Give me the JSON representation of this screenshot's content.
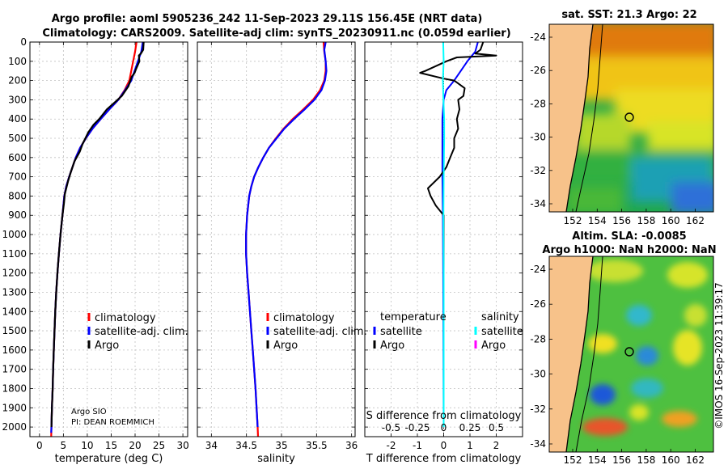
{
  "header": {
    "title_line1": "Argo profile: aoml 5905236_242 11-Sep-2023 29.11S  156.45E (NRT data)",
    "title_line2": "Climatology: CARS2009. Satellite-adj clim: synTS_20230911.nc (0.059d earlier)"
  },
  "chart_data": [
    {
      "id": "temperature",
      "type": "line",
      "xlabel": "temperature (deg C)",
      "xlim": [
        -2,
        31
      ],
      "xticks": [
        0,
        5,
        10,
        15,
        20,
        25,
        30
      ],
      "ylim": [
        2050,
        0
      ],
      "yticks": [
        0,
        100,
        200,
        300,
        400,
        500,
        600,
        700,
        800,
        900,
        1000,
        1100,
        1200,
        1300,
        1400,
        1500,
        1600,
        1700,
        1800,
        1900,
        2000
      ],
      "legend": [
        "climatology",
        "satellite-adj. clim.",
        "Argo"
      ],
      "legend_position": "center-right",
      "annotations": [
        "Argo SIO",
        "PI: DEAN ROEMMICH"
      ],
      "series": [
        {
          "name": "climatology",
          "color": "#ff0000",
          "points": [
            [
              20.3,
              0
            ],
            [
              20.0,
              50
            ],
            [
              19.6,
              100
            ],
            [
              18.8,
              200
            ],
            [
              17.8,
              250
            ],
            [
              16.5,
              300
            ],
            [
              14.6,
              350
            ],
            [
              12.8,
              400
            ],
            [
              11.1,
              450
            ],
            [
              9.7,
              500
            ],
            [
              8.5,
              550
            ],
            [
              7.6,
              600
            ],
            [
              6.9,
              650
            ],
            [
              6.2,
              700
            ],
            [
              5.6,
              750
            ],
            [
              5.2,
              800
            ],
            [
              4.8,
              900
            ],
            [
              4.4,
              1000
            ],
            [
              4.05,
              1100
            ],
            [
              3.75,
              1200
            ],
            [
              3.5,
              1300
            ],
            [
              3.3,
              1400
            ],
            [
              3.15,
              1500
            ],
            [
              3.0,
              1600
            ],
            [
              2.85,
              1700
            ],
            [
              2.75,
              1800
            ],
            [
              2.6,
              1900
            ],
            [
              2.5,
              2000
            ],
            [
              2.45,
              2050
            ]
          ]
        },
        {
          "name": "satellite-adj. clim.",
          "color": "#0000ff",
          "points": [
            [
              21.6,
              0
            ],
            [
              21.3,
              50
            ],
            [
              20.6,
              100
            ],
            [
              19.2,
              200
            ],
            [
              17.9,
              250
            ],
            [
              16.5,
              300
            ],
            [
              14.6,
              350
            ],
            [
              12.8,
              400
            ],
            [
              11.1,
              450
            ],
            [
              9.7,
              500
            ],
            [
              8.5,
              550
            ],
            [
              7.6,
              600
            ],
            [
              6.9,
              650
            ],
            [
              6.2,
              700
            ],
            [
              5.6,
              750
            ],
            [
              5.2,
              800
            ],
            [
              4.8,
              900
            ],
            [
              4.4,
              1000
            ],
            [
              4.05,
              1100
            ],
            [
              3.75,
              1200
            ],
            [
              3.5,
              1300
            ],
            [
              3.3,
              1400
            ],
            [
              3.15,
              1500
            ],
            [
              3.0,
              1600
            ],
            [
              2.85,
              1700
            ],
            [
              2.75,
              1800
            ],
            [
              2.6,
              1900
            ],
            [
              2.5,
              2000
            ],
            [
              2.45,
              2030
            ]
          ]
        },
        {
          "name": "Argo",
          "color": "#000000",
          "points": [
            [
              21.8,
              0
            ],
            [
              21.7,
              40
            ],
            [
              21.2,
              60
            ],
            [
              20.8,
              70
            ],
            [
              20.9,
              100
            ],
            [
              20.2,
              140
            ],
            [
              19.9,
              160
            ],
            [
              19.3,
              180
            ],
            [
              18.6,
              230
            ],
            [
              17.2,
              280
            ],
            [
              15.9,
              310
            ],
            [
              14.1,
              350
            ],
            [
              12.5,
              400
            ],
            [
              11.3,
              430
            ],
            [
              10.2,
              470
            ],
            [
              9.0,
              530
            ],
            [
              8.4,
              570
            ],
            [
              7.3,
              620
            ],
            [
              6.5,
              680
            ],
            [
              6.0,
              720
            ],
            [
              5.6,
              760
            ],
            [
              5.3,
              790
            ],
            [
              5.1,
              840
            ],
            [
              4.8,
              900
            ],
            [
              4.4,
              1000
            ],
            [
              4.05,
              1100
            ],
            [
              3.75,
              1200
            ],
            [
              3.5,
              1300
            ],
            [
              3.3,
              1400
            ],
            [
              3.15,
              1500
            ],
            [
              3.0,
              1600
            ],
            [
              2.85,
              1700
            ],
            [
              2.75,
              1800
            ],
            [
              2.6,
              1900
            ],
            [
              2.5,
              2000
            ]
          ]
        }
      ]
    },
    {
      "id": "salinity",
      "type": "line",
      "xlabel": "salinity",
      "xlim": [
        33.8,
        36.05
      ],
      "xticks": [
        34,
        34.5,
        35,
        35.5,
        36
      ],
      "ylim": [
        2050,
        0
      ],
      "legend": [
        "climatology",
        "satellite-adj. clim.",
        "Argo"
      ],
      "legend_position": "center-right",
      "series": [
        {
          "name": "climatology",
          "color": "#ff0000",
          "points": [
            [
              35.6,
              0
            ],
            [
              35.61,
              50
            ],
            [
              35.63,
              100
            ],
            [
              35.63,
              150
            ],
            [
              35.61,
              200
            ],
            [
              35.55,
              250
            ],
            [
              35.45,
              300
            ],
            [
              35.31,
              350
            ],
            [
              35.16,
              400
            ],
            [
              35.03,
              450
            ],
            [
              34.92,
              500
            ],
            [
              34.82,
              550
            ],
            [
              34.74,
              600
            ],
            [
              34.67,
              650
            ],
            [
              34.61,
              700
            ],
            [
              34.57,
              750
            ],
            [
              34.54,
              800
            ],
            [
              34.51,
              900
            ],
            [
              34.495,
              1000
            ],
            [
              34.495,
              1100
            ],
            [
              34.51,
              1200
            ],
            [
              34.53,
              1300
            ],
            [
              34.55,
              1400
            ],
            [
              34.57,
              1500
            ],
            [
              34.59,
              1600
            ],
            [
              34.61,
              1700
            ],
            [
              34.63,
              1800
            ],
            [
              34.645,
              1900
            ],
            [
              34.66,
              2000
            ],
            [
              34.665,
              2050
            ]
          ]
        },
        {
          "name": "satellite-adj. clim.",
          "color": "#0000ff",
          "points": [
            [
              35.63,
              0
            ],
            [
              35.61,
              40
            ],
            [
              35.63,
              100
            ],
            [
              35.64,
              150
            ],
            [
              35.62,
              200
            ],
            [
              35.57,
              250
            ],
            [
              35.47,
              300
            ],
            [
              35.33,
              350
            ],
            [
              35.18,
              400
            ],
            [
              35.04,
              450
            ],
            [
              34.93,
              500
            ],
            [
              34.82,
              550
            ],
            [
              34.74,
              600
            ],
            [
              34.67,
              650
            ],
            [
              34.61,
              700
            ],
            [
              34.57,
              750
            ],
            [
              34.54,
              800
            ],
            [
              34.51,
              900
            ],
            [
              34.495,
              1000
            ],
            [
              34.495,
              1100
            ],
            [
              34.51,
              1200
            ],
            [
              34.53,
              1300
            ],
            [
              34.55,
              1400
            ],
            [
              34.57,
              1500
            ],
            [
              34.59,
              1600
            ],
            [
              34.61,
              1700
            ],
            [
              34.63,
              1800
            ],
            [
              34.645,
              1900
            ],
            [
              34.66,
              2000
            ]
          ]
        }
      ]
    },
    {
      "id": "difference",
      "type": "line",
      "xlabel": "T difference from climatology",
      "xlabel_top": "S difference from climatology",
      "xlim": [
        -3,
        3
      ],
      "xticks": [
        -2,
        -1,
        0,
        1,
        2
      ],
      "xticks_top": [
        -0.5,
        -0.25,
        0,
        0.25,
        0.5
      ],
      "ylim": [
        2050,
        0
      ],
      "legend_temperature_title": "temperature",
      "legend_salinity_title": "salinity",
      "legend_temperature": [
        "satellite",
        "Argo"
      ],
      "legend_salinity": [
        "satellite",
        "Argo"
      ],
      "series": [
        {
          "name": "temperature satellite",
          "color": "#0000ff",
          "points": [
            [
              1.3,
              0
            ],
            [
              1.2,
              50
            ],
            [
              0.9,
              100
            ],
            [
              0.4,
              200
            ],
            [
              0.1,
              250
            ],
            [
              0.0,
              300
            ],
            [
              -0.05,
              400
            ],
            [
              -0.05,
              500
            ],
            [
              -0.05,
              700
            ],
            [
              -0.03,
              900
            ],
            [
              -0.02,
              1200
            ],
            [
              -0.01,
              1600
            ],
            [
              0.0,
              2000
            ]
          ]
        },
        {
          "name": "temperature Argo",
          "color": "#000000",
          "points": [
            [
              1.5,
              0
            ],
            [
              1.4,
              40
            ],
            [
              1.2,
              60
            ],
            [
              2.0,
              70
            ],
            [
              0.5,
              80
            ],
            [
              0.1,
              100
            ],
            [
              -0.7,
              150
            ],
            [
              -0.9,
              160
            ],
            [
              0.0,
              190
            ],
            [
              0.4,
              200
            ],
            [
              0.8,
              240
            ],
            [
              0.75,
              280
            ],
            [
              0.55,
              300
            ],
            [
              0.6,
              350
            ],
            [
              0.5,
              400
            ],
            [
              0.55,
              450
            ],
            [
              0.4,
              500
            ],
            [
              0.4,
              550
            ],
            [
              0.25,
              600
            ],
            [
              0.1,
              650
            ],
            [
              -0.15,
              700
            ],
            [
              -0.6,
              760
            ],
            [
              -0.5,
              800
            ],
            [
              -0.3,
              850
            ],
            [
              0.0,
              900
            ],
            [
              0.0,
              2000
            ]
          ]
        },
        {
          "name": "salinity satellite",
          "color": "#00ffff",
          "points": [
            [
              -0.02,
              0
            ],
            [
              0.0,
              100
            ],
            [
              -0.03,
              200
            ],
            [
              -0.01,
              300
            ],
            [
              0.02,
              400
            ],
            [
              0.02,
              500
            ],
            [
              0.0,
              700
            ],
            [
              -0.01,
              900
            ],
            [
              0.0,
              1200
            ],
            [
              0.0,
              2000
            ]
          ]
        }
      ]
    }
  ],
  "map_sst": {
    "title": "sat. SST: 21.3 Argo: 22",
    "xticks": [
      "152",
      "154",
      "156",
      "158",
      "160",
      "162"
    ],
    "yticks": [
      "-24",
      "-26",
      "-28",
      "-30",
      "-32",
      "-34"
    ]
  },
  "map_sla": {
    "title_line1": "Altim. SLA: -0.0085",
    "title_line2": "Argo h1000: NaN h2000: NaN",
    "xticks": [
      "152",
      "154",
      "156",
      "158",
      "160",
      "162"
    ],
    "yticks": [
      "-24",
      "-26",
      "-28",
      "-30",
      "-32",
      "-34"
    ]
  },
  "footer": {
    "stamp": "©IMOS 16-Sep-2023 11:39:17"
  }
}
